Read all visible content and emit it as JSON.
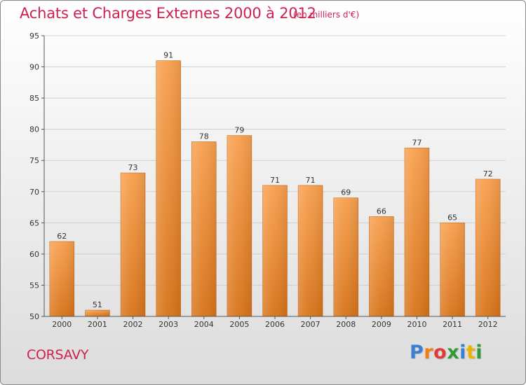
{
  "header": {
    "title": "Achats et Charges Externes 2000 à 2012",
    "subtitle": "(en milliers d'€)"
  },
  "footer": {
    "location": "CORSAVY",
    "brand_letters": [
      "P",
      "r",
      "o",
      "x",
      "i",
      "t",
      "i"
    ],
    "brand_colors": [
      "#3a7fd0",
      "#f07e12",
      "#e03a3a",
      "#2f9a3a",
      "#3a7fd0",
      "#e8b400",
      "#2f9a3a"
    ]
  },
  "chart_data": {
    "type": "bar",
    "title": "Achats et Charges Externes 2000 à 2012",
    "subtitle": "(en milliers d'€)",
    "categories": [
      "2000",
      "2001",
      "2002",
      "2003",
      "2004",
      "2005",
      "2006",
      "2007",
      "2008",
      "2009",
      "2010",
      "2011",
      "2012"
    ],
    "values": [
      62,
      51,
      73,
      91,
      78,
      79,
      71,
      71,
      69,
      66,
      77,
      65,
      72
    ],
    "xlabel": "",
    "ylabel": "",
    "ylim": [
      50,
      95
    ],
    "yticks": [
      50,
      55,
      60,
      65,
      70,
      75,
      80,
      85,
      90,
      95
    ],
    "grid": true,
    "bar_color_top": "#f8a04e",
    "bar_color_bottom": "#d8741a"
  }
}
